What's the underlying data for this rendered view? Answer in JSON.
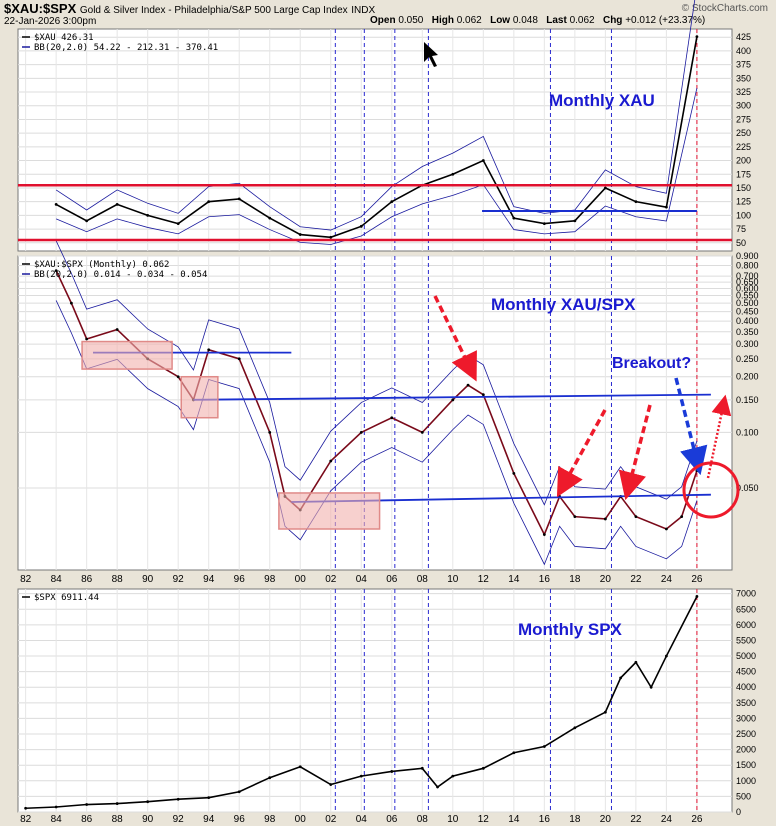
{
  "header": {
    "symbol": "$XAU:$SPX",
    "description": "Gold & Silver Index - Philadelphia/S&P 500 Large Cap Index",
    "exchange": "INDX",
    "date": "22-Jan-2026 3:00pm",
    "brand": "© StockCharts.com",
    "open_label": "Open",
    "open": "0.050",
    "high_label": "High",
    "high": "0.062",
    "low_label": "Low",
    "low": "0.048",
    "last_label": "Last",
    "last": "0.062",
    "chg_label": "Chg",
    "chg": "+0.012 (+23.37%)"
  },
  "colors": {
    "price": "#000000",
    "bands": "#1a1a9e",
    "support": "#e0102e",
    "trend": "#1a2fd0",
    "dashed_vertical": "#2a2ad0",
    "box": "#f1b0ae",
    "arrow_red": "#ee1a2b",
    "arrow_blue": "#1a3bd8"
  },
  "chart_data": [
    {
      "type": "line",
      "legend": [
        "$XAU 426.31",
        "BB(20,2.0) 54.22 - 212.31 - 370.41"
      ],
      "annotation": "Monthly XAU",
      "y_ticks": [
        425,
        400,
        375,
        350,
        325,
        300,
        275,
        250,
        225,
        200,
        175,
        150,
        125,
        100,
        75,
        50
      ],
      "ylim": [
        35,
        440
      ],
      "horizontal_lines": [
        155,
        55
      ],
      "trend_line": {
        "from": [
          "2011-12",
          108
        ],
        "to": [
          "2026-01",
          108
        ]
      },
      "x": [
        "1984",
        "1986",
        "1988",
        "1990",
        "1992",
        "1994",
        "1996",
        "1998",
        "2000",
        "2002",
        "2004",
        "2006",
        "2008",
        "2010",
        "2012",
        "2014",
        "2016",
        "2018",
        "2020",
        "2022",
        "2024",
        "2026"
      ],
      "values": [
        120,
        90,
        120,
        100,
        85,
        125,
        130,
        95,
        65,
        60,
        80,
        125,
        155,
        175,
        200,
        95,
        85,
        90,
        150,
        125,
        115,
        426
      ]
    },
    {
      "type": "line",
      "scale": "log",
      "legend": [
        "$XAU:$SPX (Monthly) 0.062",
        "BB(20,2.0) 0.014 - 0.034 - 0.054"
      ],
      "annotation": "Monthly XAU/SPX",
      "callout": "Breakout?",
      "y_ticks": [
        "0.900",
        "0.800",
        "0.700",
        "0.650",
        "0.600",
        "0.550",
        "0.500",
        "0.450",
        "0.400",
        "0.350",
        "0.300",
        "0.250",
        "0.200",
        "0.150",
        "0.100",
        "0.050"
      ],
      "ylim": [
        0.018,
        0.9
      ],
      "trend_lines": [
        {
          "from": [
            "1986-06",
            0.27
          ],
          "to": [
            "1999-06",
            0.27
          ]
        },
        {
          "from": [
            "1993-01",
            0.15
          ],
          "to": [
            "2026-12",
            0.16
          ]
        },
        {
          "from": [
            "1999-06",
            0.042
          ],
          "to": [
            "2026-12",
            0.046
          ]
        }
      ],
      "x": [
        "1984",
        "1985",
        "1986",
        "1988",
        "1990",
        "1992",
        "1993",
        "1994",
        "1996",
        "1998",
        "1999",
        "2000",
        "2002",
        "2004",
        "2006",
        "2008",
        "2010",
        "2011",
        "2012",
        "2014",
        "2016",
        "2017",
        "2018",
        "2020",
        "2021",
        "2022",
        "2024",
        "2025",
        "2026"
      ],
      "values": [
        0.75,
        0.5,
        0.32,
        0.36,
        0.25,
        0.2,
        0.15,
        0.28,
        0.25,
        0.1,
        0.045,
        0.038,
        0.07,
        0.1,
        0.12,
        0.1,
        0.15,
        0.18,
        0.16,
        0.06,
        0.028,
        0.045,
        0.035,
        0.034,
        0.045,
        0.035,
        0.03,
        0.035,
        0.062
      ]
    },
    {
      "type": "line",
      "legend": [
        "$SPX 6911.44"
      ],
      "annotation": "Monthly SPX",
      "y_ticks": [
        7000,
        6500,
        6000,
        5500,
        5000,
        4500,
        4000,
        3500,
        3000,
        2500,
        2000,
        1500,
        1000,
        500,
        0
      ],
      "ylim": [
        0,
        7150
      ],
      "x": [
        "1982",
        "1984",
        "1986",
        "1988",
        "1990",
        "1992",
        "1994",
        "1996",
        "1998",
        "2000",
        "2002",
        "2004",
        "2006",
        "2008",
        "2009",
        "2010",
        "2012",
        "2014",
        "2016",
        "2018",
        "2020",
        "2021",
        "2022",
        "2023",
        "2024",
        "2026"
      ],
      "values": [
        120,
        160,
        240,
        270,
        330,
        410,
        460,
        650,
        1100,
        1450,
        880,
        1150,
        1300,
        1400,
        800,
        1150,
        1400,
        1900,
        2100,
        2700,
        3200,
        4300,
        4800,
        4000,
        5000,
        6911
      ]
    }
  ],
  "x_axis_labels": [
    "82",
    "84",
    "86",
    "88",
    "90",
    "92",
    "94",
    "96",
    "98",
    "00",
    "02",
    "04",
    "06",
    "08",
    "10",
    "12",
    "14",
    "16",
    "18",
    "20",
    "22",
    "24",
    "26"
  ],
  "vertical_markers_years": [
    2002.3,
    2004.2,
    2006.2,
    2008.4,
    2016.4,
    2020.4,
    2026.0
  ]
}
